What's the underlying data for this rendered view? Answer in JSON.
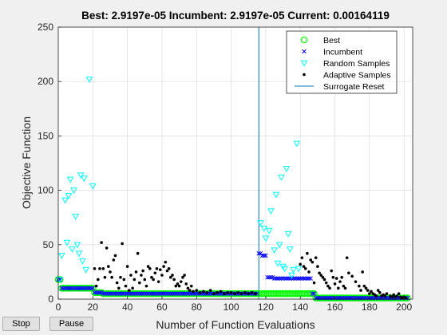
{
  "title": "Best: 2.9197e-05 Incumbent: 2.9197e-05 Current: 0.00164119",
  "buttons": {
    "stop": "Stop",
    "pause": "Pause"
  },
  "chart_data": {
    "type": "scatter",
    "xlabel": "Number of Function Evaluations",
    "ylabel": "Objective Function",
    "xlim": [
      0,
      205
    ],
    "ylim": [
      0,
      250
    ],
    "xticks": [
      0,
      20,
      40,
      60,
      80,
      100,
      120,
      140,
      160,
      180,
      200
    ],
    "yticks": [
      0,
      50,
      100,
      150,
      200,
      250
    ],
    "grid": true,
    "legend_position": "top-right",
    "legend": [
      "Best",
      "Incumbent",
      "Random Samples",
      "Adaptive Samples",
      "Surrogate Reset"
    ],
    "colors": {
      "best": "#00ff00",
      "incumbent": "#0000ff",
      "random": "#00ffff",
      "adaptive": "#000000",
      "reset": "#0072bd"
    },
    "surrogate_reset_x": 116,
    "random_samples": [
      [
        1,
        18
      ],
      [
        2,
        40
      ],
      [
        4,
        91
      ],
      [
        5,
        52
      ],
      [
        6,
        95
      ],
      [
        7,
        110
      ],
      [
        8,
        46
      ],
      [
        9,
        100
      ],
      [
        10,
        76
      ],
      [
        11,
        50
      ],
      [
        12,
        42
      ],
      [
        13,
        114
      ],
      [
        14,
        35
      ],
      [
        15,
        111
      ],
      [
        16,
        27
      ],
      [
        18,
        202
      ],
      [
        20,
        104
      ],
      [
        117,
        70
      ],
      [
        119,
        65
      ],
      [
        120,
        56
      ],
      [
        122,
        63
      ],
      [
        123,
        81
      ],
      [
        125,
        45
      ],
      [
        126,
        96
      ],
      [
        127,
        33
      ],
      [
        128,
        50
      ],
      [
        129,
        112
      ],
      [
        130,
        30
      ],
      [
        131,
        28
      ],
      [
        132,
        120
      ],
      [
        133,
        60
      ],
      [
        134,
        46
      ],
      [
        135,
        22
      ],
      [
        136,
        27
      ],
      [
        138,
        143
      ],
      [
        139,
        28
      ]
    ],
    "adaptive_samples": [
      [
        21,
        28
      ],
      [
        22,
        12
      ],
      [
        23,
        18
      ],
      [
        24,
        28
      ],
      [
        25,
        52
      ],
      [
        26,
        28
      ],
      [
        27,
        20
      ],
      [
        28,
        47
      ],
      [
        29,
        30
      ],
      [
        30,
        25
      ],
      [
        31,
        20
      ],
      [
        32,
        36
      ],
      [
        33,
        40
      ],
      [
        34,
        15
      ],
      [
        35,
        10
      ],
      [
        36,
        20
      ],
      [
        37,
        51
      ],
      [
        38,
        18
      ],
      [
        39,
        12
      ],
      [
        40,
        30
      ],
      [
        41,
        8
      ],
      [
        42,
        22
      ],
      [
        43,
        10
      ],
      [
        44,
        18
      ],
      [
        45,
        25
      ],
      [
        46,
        42
      ],
      [
        47,
        15
      ],
      [
        48,
        22
      ],
      [
        49,
        26
      ],
      [
        50,
        18
      ],
      [
        51,
        12
      ],
      [
        52,
        30
      ],
      [
        53,
        28
      ],
      [
        54,
        20
      ],
      [
        55,
        18
      ],
      [
        56,
        24
      ],
      [
        57,
        28
      ],
      [
        58,
        16
      ],
      [
        59,
        27
      ],
      [
        60,
        22
      ],
      [
        61,
        30
      ],
      [
        62,
        34
      ],
      [
        63,
        26
      ],
      [
        64,
        28
      ],
      [
        65,
        20
      ],
      [
        66,
        22
      ],
      [
        67,
        18
      ],
      [
        68,
        12
      ],
      [
        69,
        14
      ],
      [
        70,
        12
      ],
      [
        71,
        16
      ],
      [
        72,
        20
      ],
      [
        73,
        22
      ],
      [
        74,
        14
      ],
      [
        75,
        10
      ],
      [
        76,
        8
      ],
      [
        77,
        12
      ],
      [
        78,
        7
      ],
      [
        80,
        8
      ],
      [
        82,
        6
      ],
      [
        84,
        7
      ],
      [
        86,
        6
      ],
      [
        88,
        8
      ],
      [
        90,
        5
      ],
      [
        92,
        6
      ],
      [
        94,
        7
      ],
      [
        96,
        5
      ],
      [
        98,
        6
      ],
      [
        100,
        6
      ],
      [
        102,
        5
      ],
      [
        104,
        6
      ],
      [
        106,
        5
      ],
      [
        108,
        6
      ],
      [
        110,
        5
      ],
      [
        112,
        6
      ],
      [
        114,
        5
      ],
      [
        140,
        32
      ],
      [
        141,
        38
      ],
      [
        142,
        30
      ],
      [
        143,
        28
      ],
      [
        144,
        42
      ],
      [
        145,
        25
      ],
      [
        146,
        36
      ],
      [
        147,
        34
      ],
      [
        148,
        15
      ],
      [
        149,
        38
      ],
      [
        150,
        30
      ],
      [
        151,
        24
      ],
      [
        152,
        22
      ],
      [
        153,
        20
      ],
      [
        154,
        18
      ],
      [
        155,
        15
      ],
      [
        156,
        12
      ],
      [
        157,
        10
      ],
      [
        158,
        26
      ],
      [
        159,
        20
      ],
      [
        160,
        14
      ],
      [
        161,
        19
      ],
      [
        162,
        10
      ],
      [
        163,
        16
      ],
      [
        164,
        20
      ],
      [
        165,
        12
      ],
      [
        166,
        10
      ],
      [
        167,
        38
      ],
      [
        168,
        24
      ],
      [
        170,
        21
      ],
      [
        172,
        16
      ],
      [
        174,
        12
      ],
      [
        175,
        8
      ],
      [
        176,
        25
      ],
      [
        177,
        12
      ],
      [
        178,
        10
      ],
      [
        179,
        8
      ],
      [
        180,
        5
      ],
      [
        181,
        7
      ],
      [
        182,
        5
      ],
      [
        183,
        4
      ],
      [
        184,
        3
      ],
      [
        185,
        8
      ],
      [
        186,
        6
      ],
      [
        187,
        3
      ],
      [
        188,
        4
      ],
      [
        189,
        3
      ],
      [
        190,
        5
      ],
      [
        192,
        3
      ],
      [
        193,
        2
      ],
      [
        194,
        4
      ],
      [
        195,
        2
      ],
      [
        196,
        3
      ],
      [
        197,
        5
      ],
      [
        198,
        2
      ],
      [
        199,
        1
      ],
      [
        200,
        2
      ],
      [
        201,
        1
      ]
    ],
    "best_segments": [
      [
        0,
        18
      ],
      [
        2,
        10
      ],
      [
        21,
        6
      ],
      [
        26,
        5
      ],
      [
        116,
        5
      ],
      [
        148,
        5
      ],
      [
        149,
        1
      ],
      [
        202,
        1
      ]
    ],
    "incumbent_segments": [
      [
        0,
        18
      ],
      [
        2,
        10
      ],
      [
        21,
        6
      ],
      [
        26,
        5
      ],
      [
        116,
        5
      ],
      [
        116,
        42
      ],
      [
        118,
        40
      ],
      [
        121,
        20
      ],
      [
        125,
        19
      ],
      [
        145,
        19
      ],
      [
        147,
        5
      ],
      [
        149,
        1
      ],
      [
        202,
        1
      ]
    ]
  }
}
